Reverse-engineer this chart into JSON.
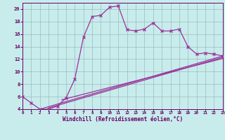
{
  "background_color": "#c8ecec",
  "line_color": "#993399",
  "grid_color": "#99bbbb",
  "xlabel": "Windchill (Refroidissement éolien,°C)",
  "xlim": [
    0,
    23
  ],
  "ylim": [
    4,
    21
  ],
  "yticks": [
    4,
    6,
    8,
    10,
    12,
    14,
    16,
    18,
    20
  ],
  "xticks": [
    0,
    1,
    2,
    3,
    4,
    5,
    6,
    7,
    8,
    9,
    10,
    11,
    12,
    13,
    14,
    15,
    16,
    17,
    18,
    19,
    20,
    21,
    22,
    23
  ],
  "main_x": [
    0,
    1,
    2,
    3,
    4,
    5,
    6,
    7,
    8,
    9,
    10,
    11,
    12,
    13,
    14,
    15,
    16,
    17,
    18,
    19,
    20,
    21,
    22,
    23
  ],
  "main_y": [
    6.0,
    5.0,
    4.0,
    4.0,
    4.5,
    5.8,
    8.8,
    15.5,
    18.8,
    19.0,
    20.3,
    20.5,
    16.7,
    16.5,
    16.8,
    17.8,
    16.5,
    16.5,
    16.8,
    14.0,
    12.8,
    13.0,
    12.8,
    12.5
  ],
  "line2_x": [
    2.0,
    23
  ],
  "line2_y": [
    4.0,
    12.5
  ],
  "line3_x": [
    3.0,
    23
  ],
  "line3_y": [
    4.2,
    12.3
  ],
  "line4_x": [
    4.5,
    23
  ],
  "line4_y": [
    5.5,
    12.1
  ]
}
